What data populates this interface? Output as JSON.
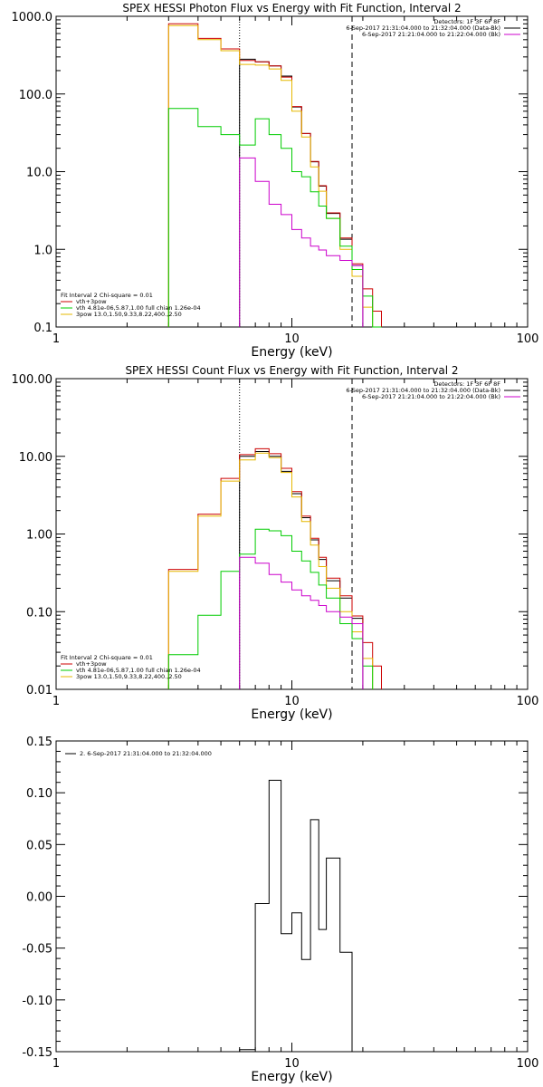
{
  "chart_data": [
    {
      "type": "line",
      "title": "SPEX HESSI Photon Flux vs Energy with Fit Function, Interval 2",
      "xlabel": "Energy (keV)",
      "x_scale": "log",
      "y_scale": "log",
      "xlim": [
        1,
        100
      ],
      "ylim": [
        0.1,
        1000
      ],
      "x_ticks": [
        "1",
        "10",
        "100"
      ],
      "y_ticks": [
        "0.1",
        "1.0",
        "10.0",
        "100.0",
        "1000.0"
      ],
      "vlines": [
        {
          "x": 6,
          "style": "dotted"
        },
        {
          "x": 18,
          "style": "dashed"
        }
      ],
      "legend_top": [
        {
          "text": "Detectors: 1F 3F 6F 8F",
          "color": ""
        },
        {
          "text": "6-Sep-2017 21:31:04.000 to 21:32:04.000 (Data-Bk)",
          "color": "#000000"
        },
        {
          "text": "6-Sep-2017 21:21:04.000 to 21:22:04.000 (Bk)",
          "color": "#cc00cc"
        }
      ],
      "legend_bottom": [
        {
          "text": "Fit Interval 2   Chi-square = 0.01",
          "color": ""
        },
        {
          "text": "vth+3pow",
          "color": "#cc0000"
        },
        {
          "text": "vth 4.81e-06,5.87,1.00   full chian 1.26e-04",
          "color": "#00cc00"
        },
        {
          "text": "3pow 13.0,1.50,9.33,8.22,400.,2.50",
          "color": "#e6b800"
        }
      ],
      "edges": [
        3,
        4,
        5,
        6,
        7,
        8,
        9,
        10,
        11,
        12,
        13,
        14,
        16,
        18,
        20,
        22,
        24
      ],
      "series": [
        {
          "color": "#000000",
          "values": [
            null,
            null,
            null,
            280,
            260,
            230,
            170,
            68,
            31,
            13.4,
            6.5,
            2.9,
            1.35,
            0.62,
            null,
            null
          ]
        },
        {
          "color": "#cc0000",
          "values": [
            800,
            520,
            380,
            270,
            260,
            230,
            165,
            69,
            31,
            13.5,
            6.6,
            2.95,
            1.4,
            0.65,
            0.31,
            0.16
          ]
        },
        {
          "color": "#e6b800",
          "values": [
            760,
            500,
            360,
            240,
            235,
            210,
            150,
            60,
            28,
            11.5,
            5.6,
            2.5,
            1.0,
            0.45,
            0.18,
            null
          ]
        },
        {
          "color": "#00cc00",
          "values": [
            65,
            38,
            30,
            22,
            48,
            30,
            20,
            10,
            8.6,
            5.5,
            3.6,
            2.5,
            1.1,
            0.55,
            0.25,
            0.1
          ]
        },
        {
          "color": "#cc00cc",
          "values": [
            null,
            null,
            null,
            15,
            7.5,
            3.8,
            2.8,
            1.8,
            1.4,
            1.1,
            0.98,
            0.83,
            0.72,
            0.62,
            null,
            null
          ]
        }
      ]
    },
    {
      "type": "line",
      "title": "SPEX HESSI Count Flux vs Energy with Fit Function, Interval 2",
      "xlabel": "Energy (keV)",
      "x_scale": "log",
      "y_scale": "log",
      "xlim": [
        1,
        100
      ],
      "ylim": [
        0.01,
        100
      ],
      "x_ticks": [
        "1",
        "10",
        "100"
      ],
      "y_ticks": [
        "0.01",
        "0.10",
        "1.00",
        "10.00",
        "100.00"
      ],
      "vlines": [
        {
          "x": 6,
          "style": "dotted"
        },
        {
          "x": 18,
          "style": "dashed"
        }
      ],
      "legend_top": [
        {
          "text": "Detectors: 1F 3F 6F 8F",
          "color": ""
        },
        {
          "text": "6-Sep-2017 21:31:04.000 to 21:32:04.000 (Data-Bk)",
          "color": "#000000"
        },
        {
          "text": "6-Sep-2017 21:21:04.000 to 21:22:04.000 (Bk)",
          "color": "#cc00cc"
        }
      ],
      "legend_bottom": [
        {
          "text": "Fit Interval 2   Chi-square = 0.01",
          "color": ""
        },
        {
          "text": "vth+3pow",
          "color": "#cc0000"
        },
        {
          "text": "vth 4.81e-06,5.87,1.00   full chian 1.26e-04",
          "color": "#00cc00"
        },
        {
          "text": "3pow 13.0,1.50,9.33,8.22,400.,2.50",
          "color": "#e6b800"
        }
      ],
      "edges": [
        3,
        4,
        5,
        6,
        7,
        8,
        9,
        10,
        11,
        12,
        13,
        14,
        16,
        18,
        20,
        22,
        24
      ],
      "series": [
        {
          "color": "#000000",
          "values": [
            null,
            null,
            null,
            10.0,
            11.5,
            10.0,
            6.4,
            3.3,
            1.62,
            0.84,
            0.47,
            0.25,
            0.15,
            0.082,
            null,
            null
          ]
        },
        {
          "color": "#cc0000",
          "values": [
            0.35,
            1.8,
            5.2,
            10.5,
            12.5,
            10.8,
            7.0,
            3.5,
            1.7,
            0.88,
            0.5,
            0.27,
            0.16,
            0.088,
            0.04,
            0.02
          ]
        },
        {
          "color": "#e6b800",
          "values": [
            0.33,
            1.7,
            4.8,
            9.0,
            11.0,
            9.6,
            6.2,
            3.0,
            1.45,
            0.72,
            0.38,
            0.2,
            0.1,
            0.055,
            0.025,
            null
          ]
        },
        {
          "color": "#00cc00",
          "values": [
            0.028,
            0.09,
            0.33,
            0.55,
            1.15,
            1.1,
            0.95,
            0.6,
            0.45,
            0.32,
            0.22,
            0.15,
            0.07,
            0.045,
            0.02,
            null
          ]
        },
        {
          "color": "#cc00cc",
          "values": [
            null,
            null,
            null,
            0.5,
            0.42,
            0.3,
            0.24,
            0.19,
            0.16,
            0.14,
            0.12,
            0.1,
            0.085,
            0.07,
            null,
            null
          ]
        }
      ]
    },
    {
      "type": "line",
      "title": "",
      "xlabel": "Energy (keV)",
      "ylabel": "",
      "x_scale": "log",
      "y_scale": "linear",
      "xlim": [
        1,
        100
      ],
      "ylim": [
        -0.15,
        0.15
      ],
      "x_ticks": [
        "1",
        "10",
        "100"
      ],
      "y_ticks": [
        "-0.15",
        "-0.10",
        "-0.05",
        "0.00",
        "0.05",
        "0.10",
        "0.15"
      ],
      "legend": {
        "text": "2. 6-Sep-2017 21:31:04.000 to 21:32:04.000",
        "color": "#000000"
      },
      "edges": [
        6,
        7,
        8,
        9,
        10,
        11,
        12,
        13,
        14,
        16,
        18
      ],
      "series": [
        {
          "color": "#000000",
          "values": [
            -0.148,
            -0.007,
            0.112,
            -0.036,
            -0.016,
            -0.061,
            0.074,
            -0.032,
            0.037,
            -0.054
          ]
        }
      ]
    }
  ]
}
